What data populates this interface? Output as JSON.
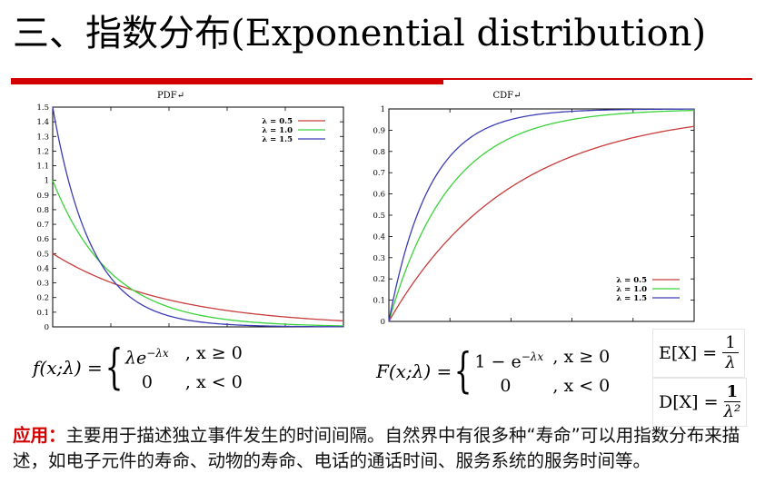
{
  "title": "三、指数分布(Exponential distribution)",
  "pdf_chart": {
    "title": "PDF↵",
    "yticks": [
      "0",
      "0.1",
      "0.2",
      "0.3",
      "0.4",
      "0.5",
      "0.6",
      "0.7",
      "0.8",
      "0.9",
      "1",
      "1.1",
      "1.2",
      "1.3",
      "1.4",
      "1.5"
    ],
    "legend": [
      "λ = 0.5",
      "λ = 1.0",
      "λ = 1.5"
    ]
  },
  "cdf_chart": {
    "title": "CDF↵",
    "yticks": [
      "0",
      "0.1",
      "0.2",
      "0.3",
      "0.4",
      "0.5",
      "0.6",
      "0.7",
      "0.8",
      "0.9",
      "1"
    ],
    "legend": [
      "λ = 0.5",
      "λ = 1.0",
      "λ = 1.5"
    ]
  },
  "colors": {
    "accent_red": "#d40000",
    "lambda_0_5": "#c83c3c",
    "lambda_1_0": "#3cd23c",
    "lambda_1_5": "#3c3cb4"
  },
  "chart_data": [
    {
      "type": "line",
      "title": "PDF↵",
      "xlabel": "",
      "ylabel": "",
      "ylim": [
        0,
        1.5
      ],
      "xlim": [
        0,
        5
      ],
      "grid": false,
      "legend_position": "top-right",
      "series": [
        {
          "name": "λ = 0.5",
          "lambda": 0.5,
          "x": [
            0,
            0.5,
            1,
            1.5,
            2,
            2.5,
            3,
            3.5,
            4,
            4.5,
            5
          ],
          "y": [
            0.5,
            0.39,
            0.3,
            0.24,
            0.18,
            0.14,
            0.11,
            0.087,
            0.068,
            0.053,
            0.041
          ]
        },
        {
          "name": "λ = 1.0",
          "lambda": 1.0,
          "x": [
            0,
            0.5,
            1,
            1.5,
            2,
            2.5,
            3,
            3.5,
            4,
            4.5,
            5
          ],
          "y": [
            1.0,
            0.61,
            0.37,
            0.22,
            0.14,
            0.08,
            0.05,
            0.03,
            0.018,
            0.011,
            0.007
          ]
        },
        {
          "name": "λ = 1.5",
          "lambda": 1.5,
          "x": [
            0,
            0.5,
            1,
            1.5,
            2,
            2.5,
            3,
            3.5,
            4,
            4.5,
            5
          ],
          "y": [
            1.5,
            0.71,
            0.33,
            0.16,
            0.07,
            0.035,
            0.017,
            0.008,
            0.004,
            0.002,
            0.001
          ]
        }
      ]
    },
    {
      "type": "line",
      "title": "CDF↵",
      "xlabel": "",
      "ylabel": "",
      "ylim": [
        0,
        1
      ],
      "xlim": [
        0,
        5
      ],
      "grid": false,
      "legend_position": "bottom-right",
      "series": [
        {
          "name": "λ = 0.5",
          "lambda": 0.5,
          "x": [
            0,
            0.5,
            1,
            1.5,
            2,
            2.5,
            3,
            3.5,
            4,
            4.5,
            5
          ],
          "y": [
            0,
            0.22,
            0.39,
            0.53,
            0.63,
            0.71,
            0.78,
            0.83,
            0.86,
            0.89,
            0.92
          ]
        },
        {
          "name": "λ = 1.0",
          "lambda": 1.0,
          "x": [
            0,
            0.5,
            1,
            1.5,
            2,
            2.5,
            3,
            3.5,
            4,
            4.5,
            5
          ],
          "y": [
            0,
            0.39,
            0.63,
            0.78,
            0.86,
            0.92,
            0.95,
            0.97,
            0.98,
            0.99,
            0.99
          ]
        },
        {
          "name": "λ = 1.5",
          "lambda": 1.5,
          "x": [
            0,
            0.5,
            1,
            1.5,
            2,
            2.5,
            3,
            3.5,
            4,
            4.5,
            5
          ],
          "y": [
            0,
            0.53,
            0.78,
            0.89,
            0.95,
            0.98,
            0.99,
            0.995,
            0.998,
            0.999,
            0.999
          ]
        }
      ]
    }
  ],
  "formulas": {
    "pdf_lhs": "f(x;λ) =",
    "pdf_case1_expr": "λe",
    "pdf_case1_exp": "−λx",
    "pdf_case1_cond": ", x ≥ 0",
    "pdf_case2_expr": "0",
    "pdf_case2_cond": ", x < 0",
    "cdf_lhs": "F(x;λ) =",
    "cdf_case1_expr": "1 − e",
    "cdf_case1_exp": "−λx",
    "cdf_case1_cond": ", x ≥ 0",
    "cdf_case2_expr": "0",
    "cdf_case2_cond": ", x < 0",
    "mean_lhs": "E[X] =",
    "mean_num": "1",
    "mean_den": "λ",
    "var_lhs": "D[X] =",
    "var_num": "1",
    "var_den": "λ²"
  },
  "application": {
    "label": "应用：",
    "text": "主要用于描述独立事件发生的时间间隔。自然界中有很多种“寿命”可以用指数分布来描述，如电子元件的寿命、动物的寿命、电话的通话时间、服务系统的服务时间等。"
  }
}
